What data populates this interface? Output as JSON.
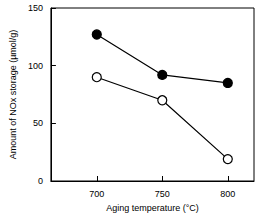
{
  "chart_data": {
    "type": "line",
    "x_label": "Aging temperature (°C)",
    "y_label": "Amount of NOx storage (µmol/g)",
    "x": [
      700,
      750,
      800
    ],
    "series": [
      {
        "color": "#000000",
        "marker": "filled_circle",
        "values": [
          127,
          92,
          85
        ]
      },
      {
        "color": "#000000",
        "marker": "open_circle",
        "values": [
          90,
          70,
          19
        ]
      }
    ],
    "xlim": [
      665,
      820
    ],
    "xticks": [
      700,
      750,
      800
    ],
    "ylim": [
      0,
      150
    ],
    "yticks": [
      0,
      50,
      100,
      150
    ],
    "grid": false
  }
}
